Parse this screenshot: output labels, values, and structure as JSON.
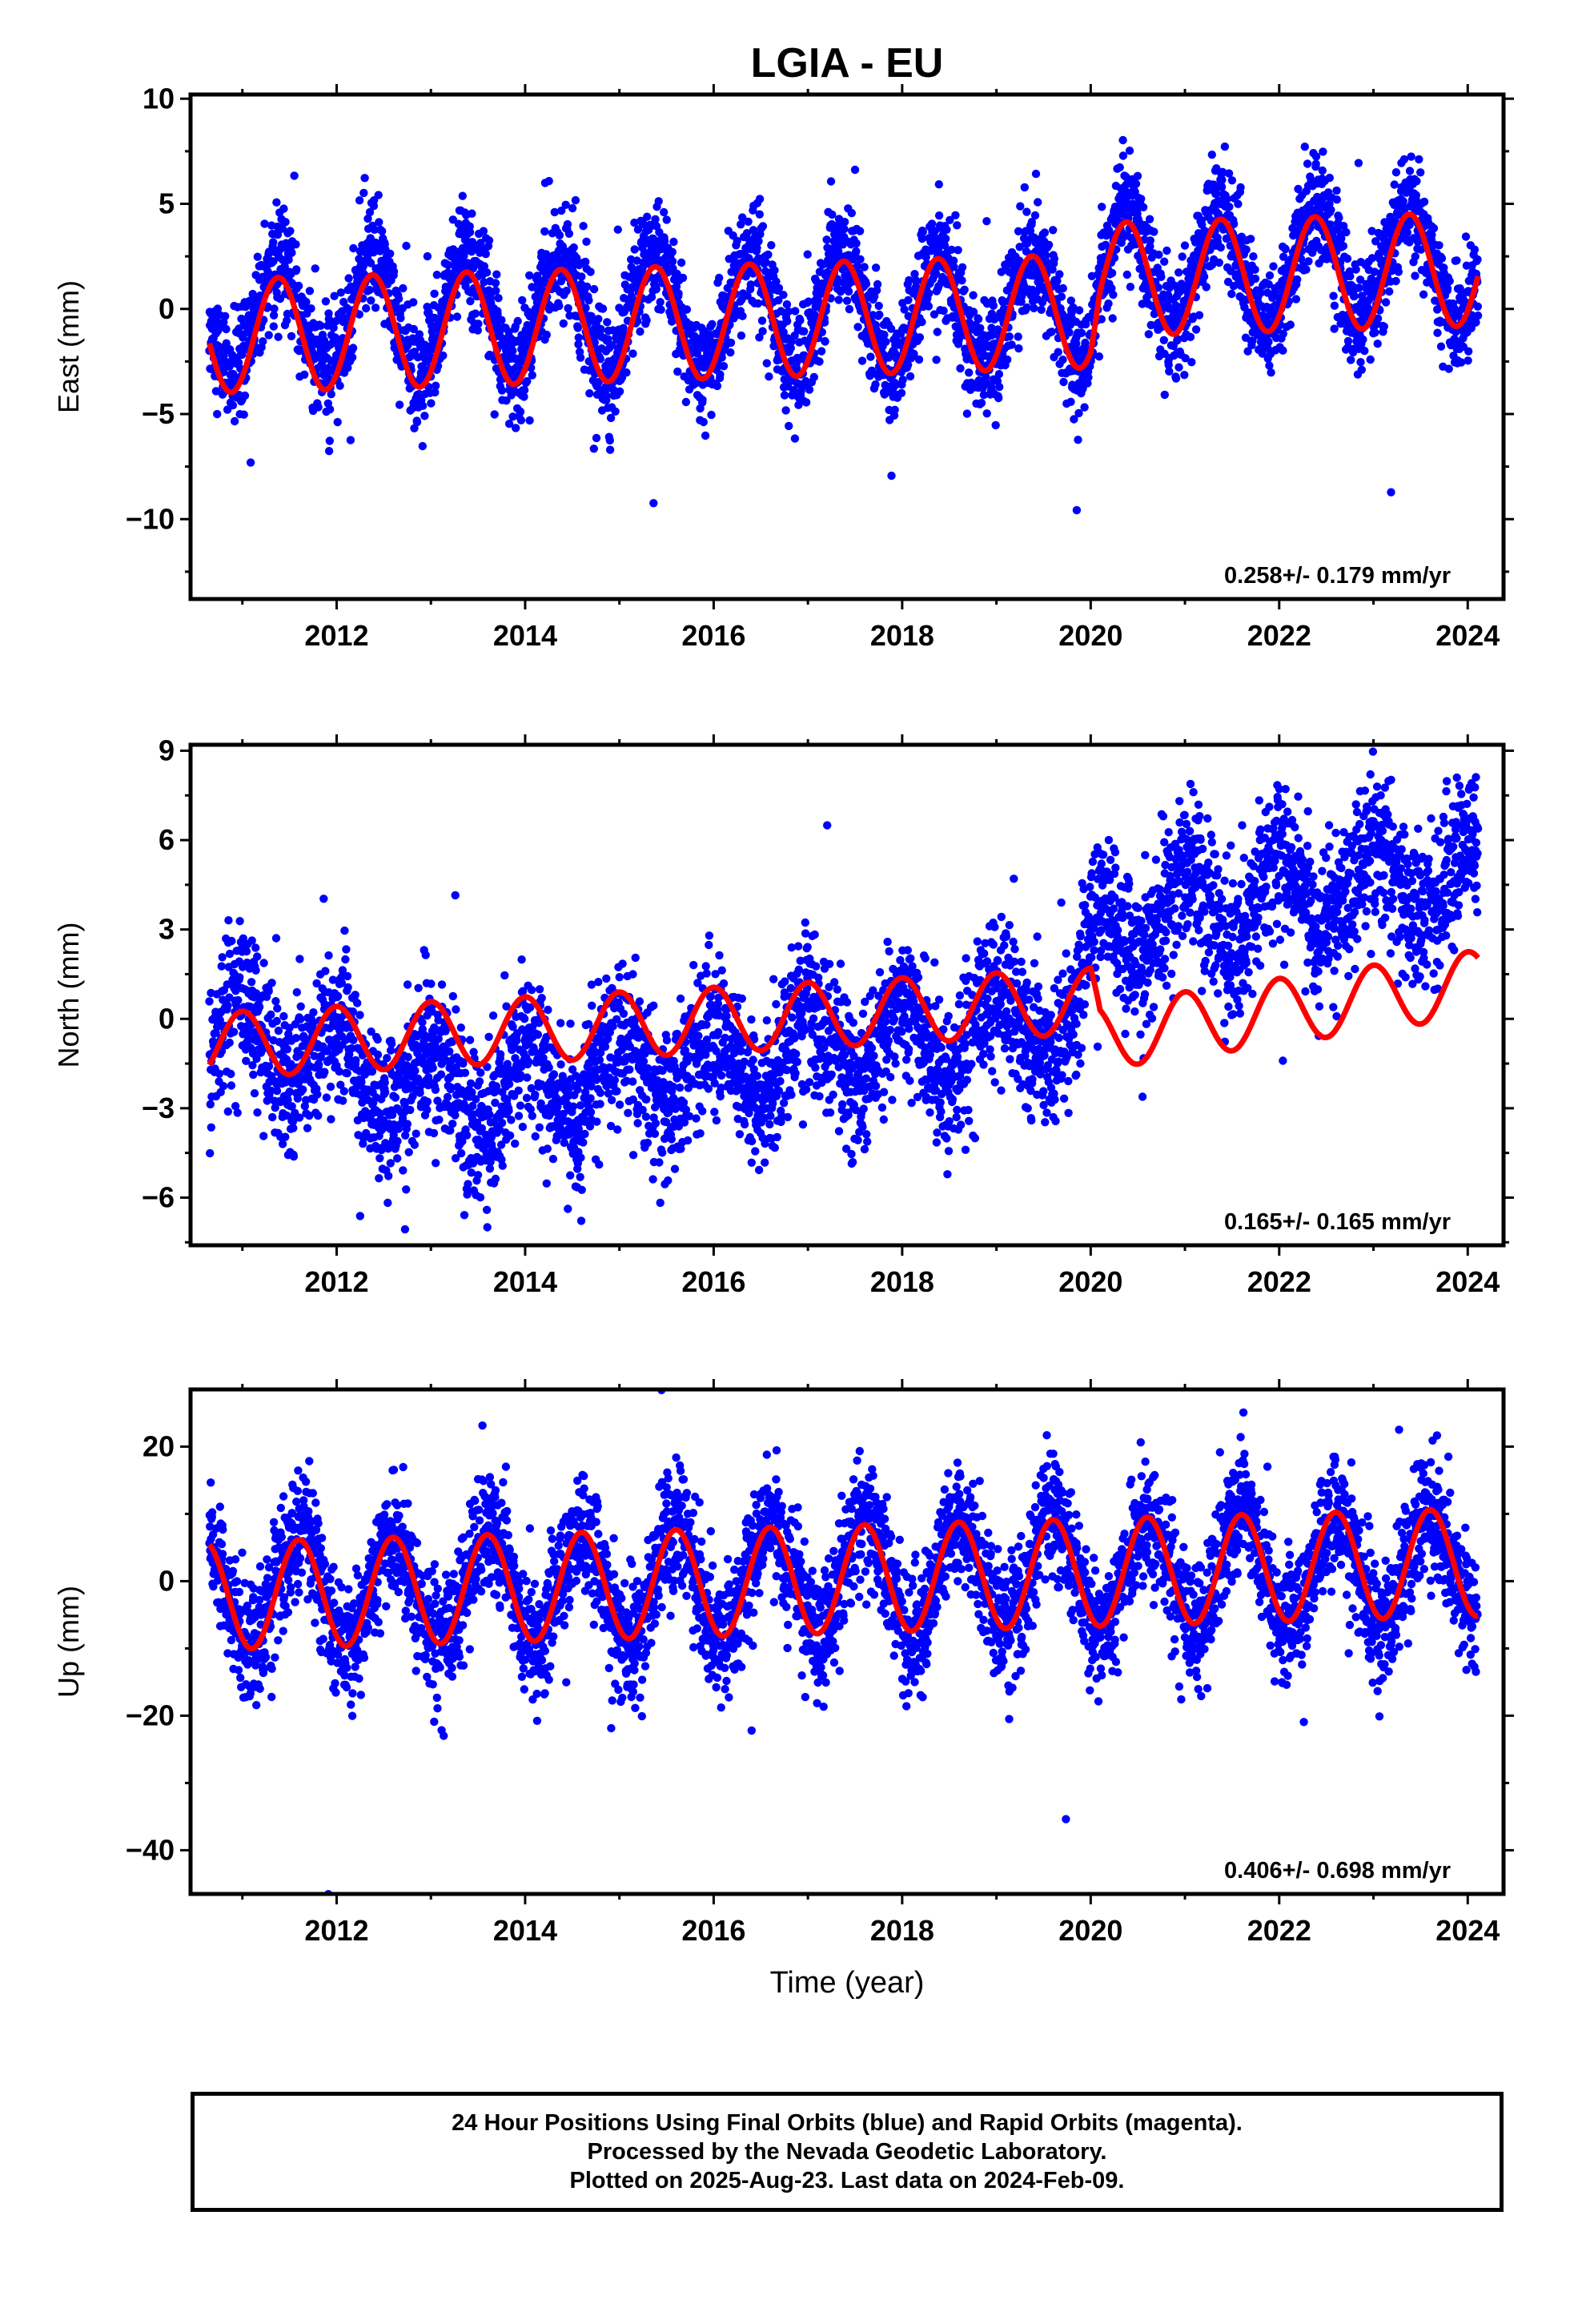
{
  "title": "LGIA - EU",
  "xlabel": "Time (year)",
  "x_ticks": [
    "2012",
    "2014",
    "2016",
    "2018",
    "2020",
    "2022",
    "2024"
  ],
  "colors": {
    "points": "#0000ff",
    "fit": "#ff0000",
    "frame": "#000000"
  },
  "panels": [
    {
      "ylabel": "East (mm)",
      "rate": "0.258+/- 0.179 mm/yr",
      "y_ticks": [
        "10",
        "5",
        "0",
        "−5",
        "−10"
      ]
    },
    {
      "ylabel": "North (mm)",
      "rate": "0.165+/- 0.165 mm/yr",
      "y_ticks": [
        "9",
        "6",
        "3",
        "0",
        "−3",
        "−6"
      ]
    },
    {
      "ylabel": "Up (mm)",
      "rate": "0.406+/- 0.698 mm/yr",
      "y_ticks": [
        "20",
        "0",
        "−20",
        "−40"
      ]
    }
  ],
  "caption": {
    "line1": "24 Hour Positions Using Final Orbits (blue) and Rapid Orbits (magenta).",
    "line2": "Processed by the Nevada Geodetic Laboratory.",
    "line3": "Plotted on 2025-Aug-23. Last data on 2024-Feb-09."
  },
  "chart_data": [
    {
      "type": "scatter",
      "title": "LGIA - EU",
      "ylabel": "East (mm)",
      "xlim": [
        2010.45,
        2024.38
      ],
      "ylim": [
        -13.8,
        10.2
      ],
      "x_ticks": [
        2012,
        2014,
        2016,
        2018,
        2020,
        2022,
        2024
      ],
      "y_ticks": [
        10,
        5,
        0,
        -5,
        -10
      ],
      "data_range": [
        2010.65,
        2024.11
      ],
      "annotation": "0.258+/- 0.179 mm/yr",
      "series": [
        {
          "kind": "points",
          "color": "blue",
          "trend": [
            [
              2010.65,
              -0.3
            ],
            [
              2020,
              0.1
            ],
            [
              2020.1,
              1.7
            ],
            [
              2024.11,
              2.3
            ]
          ],
          "annual_amplitude": 2.7,
          "annual_peak_fraction": 0.38,
          "scatter_sd": 1.3
        },
        {
          "kind": "fit",
          "color": "red",
          "trend": [
            [
              2010.65,
              -1.3
            ],
            [
              2020,
              -0.1
            ],
            [
              2020.1,
              1.4
            ],
            [
              2024.11,
              1.9
            ]
          ],
          "annual_amplitude": 2.7,
          "annual_peak_fraction": 0.38
        }
      ]
    },
    {
      "type": "scatter",
      "ylabel": "North (mm)",
      "xlim": [
        2010.45,
        2024.38
      ],
      "ylim": [
        -7.6,
        9.2
      ],
      "x_ticks": [
        2012,
        2014,
        2016,
        2018,
        2020,
        2022,
        2024
      ],
      "y_ticks": [
        9,
        6,
        3,
        0,
        -3,
        -6
      ],
      "data_range": [
        2010.65,
        2024.11
      ],
      "annotation": "0.165+/- 0.165 mm/yr",
      "series": [
        {
          "kind": "points",
          "color": "blue",
          "trend": [
            [
              2010.65,
              -0.4
            ],
            [
              2013.5,
              -2.5
            ],
            [
              2016,
              -1.5
            ],
            [
              2019.9,
              0.0
            ],
            [
              2020.1,
              3.4
            ],
            [
              2024.11,
              4.8
            ]
          ],
          "annual_amplitude": 1.3,
          "annual_peak_fraction": 0.0,
          "scatter_sd": 1.25
        },
        {
          "kind": "fit",
          "color": "red",
          "trend": [
            [
              2010.65,
              -0.9
            ],
            [
              2020,
              0.6
            ],
            [
              2020.1,
              -0.6
            ],
            [
              2024.11,
              1.2
            ]
          ],
          "annual_amplitude": 1.1,
          "annual_peak_fraction": 0.0
        }
      ]
    },
    {
      "type": "scatter",
      "ylabel": "Up (mm)",
      "xlim": [
        2010.45,
        2024.38
      ],
      "ylim": [
        -46.5,
        28.5
      ],
      "x_ticks": [
        2012,
        2014,
        2016,
        2018,
        2020,
        2022,
        2024
      ],
      "y_ticks": [
        20,
        0,
        -20,
        -40
      ],
      "data_range": [
        2010.65,
        2024.11
      ],
      "annotation": "0.406+/- 0.698 mm/yr",
      "series": [
        {
          "kind": "points",
          "color": "blue",
          "trend": [
            [
              2010.65,
              -2.0
            ],
            [
              2024.11,
              2.6
            ]
          ],
          "annual_amplitude": 8.2,
          "annual_peak_fraction": 0.6,
          "scatter_sd": 4.6
        },
        {
          "kind": "fit",
          "color": "red",
          "trend": [
            [
              2010.65,
              -2.2
            ],
            [
              2024.11,
              2.8
            ]
          ],
          "annual_amplitude": 8.0,
          "annual_peak_fraction": 0.6
        }
      ]
    }
  ]
}
